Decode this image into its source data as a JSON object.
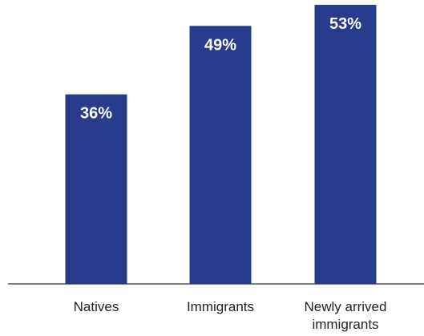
{
  "chart_data": {
    "type": "bar",
    "categories": [
      "Natives",
      "Immigrants",
      "Newly arrived immigrants"
    ],
    "category_lines": [
      [
        "Natives"
      ],
      [
        "Immigrants"
      ],
      [
        "Newly arrived",
        "immigrants"
      ]
    ],
    "values": [
      36,
      49,
      53
    ],
    "value_labels": [
      "36%",
      "49%",
      "53%"
    ],
    "ylim": [
      0,
      53
    ],
    "grid": false,
    "legend": "none",
    "title": "",
    "xlabel": "",
    "ylabel": "",
    "colors": {
      "bar": "#273c8c",
      "bar_label": "#ffffff",
      "axis": "#333333",
      "tick_text": "#222222"
    }
  }
}
